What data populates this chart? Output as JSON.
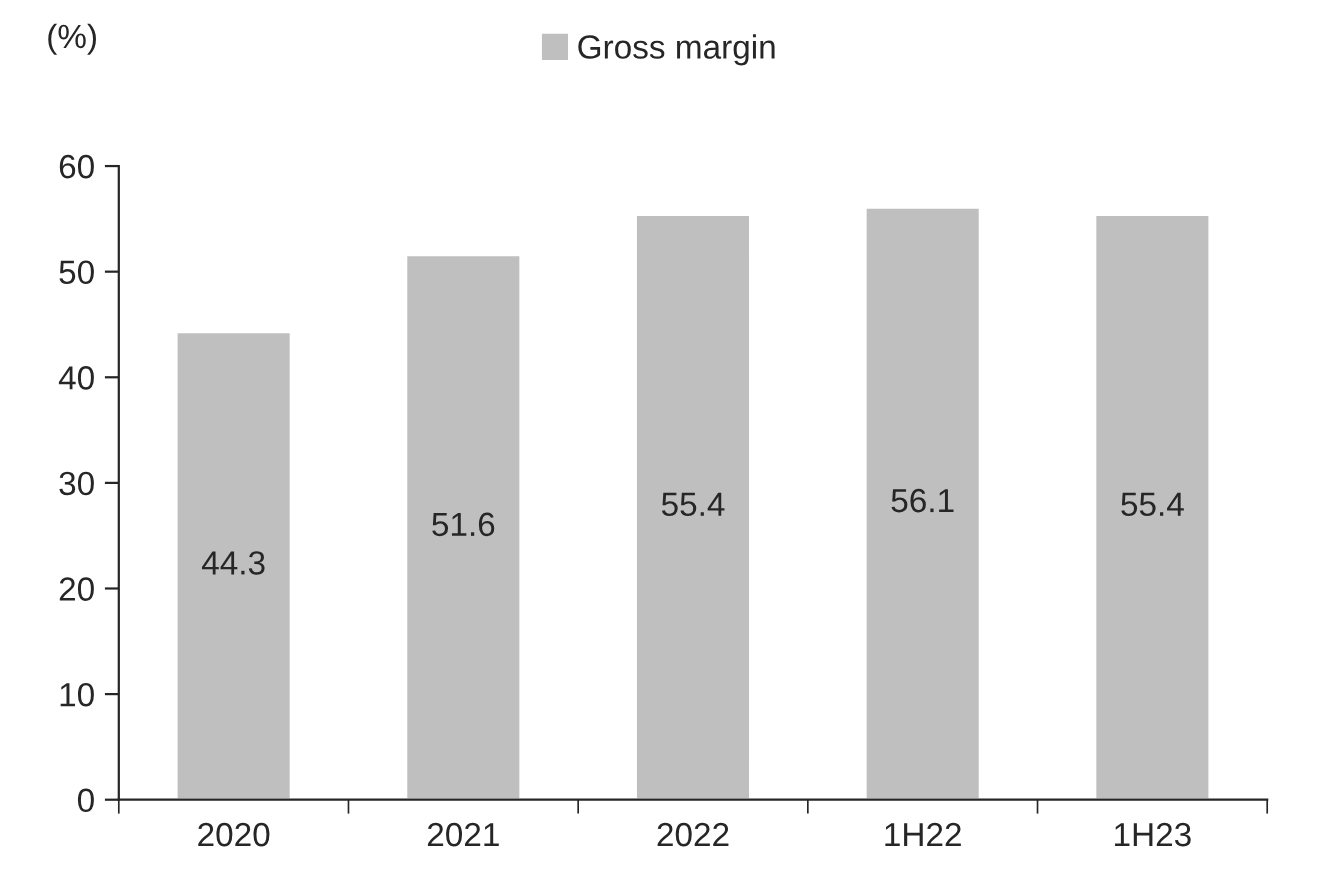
{
  "chart_data": {
    "type": "bar",
    "ylabel": "(%)",
    "categories": [
      "2020",
      "2021",
      "2022",
      "1H22",
      "1H23"
    ],
    "series": [
      {
        "name": "Gross margin",
        "color": "#bfbfbf",
        "values": [
          44.3,
          51.6,
          55.4,
          56.1,
          55.4
        ]
      }
    ],
    "ylim": [
      0,
      60
    ],
    "yticks": [
      0,
      10,
      20,
      30,
      40,
      50,
      60
    ],
    "data_labels": true,
    "legend": "top",
    "grid": false
  }
}
